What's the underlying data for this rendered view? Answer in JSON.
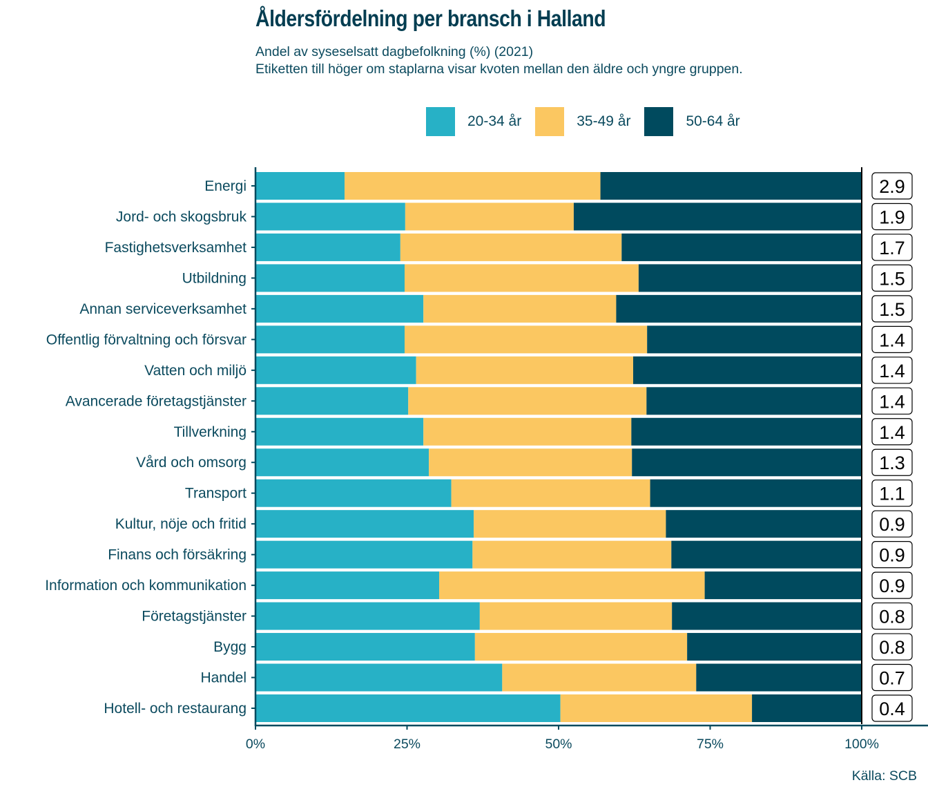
{
  "header": {
    "title": "Åldersfördelning per bransch i Halland",
    "subtitle_line1": "Andel av syseselsatt dagbefolkning (%) (2021)",
    "subtitle_line2": "Etiketten till höger om staplarna visar kvoten mellan den äldre och yngre gruppen."
  },
  "footer": {
    "source": "Källa: SCB"
  },
  "colors": {
    "20-34 år": "#27b1c6",
    "35-49 år": "#fbc761",
    "50-64 år": "#004a5e",
    "text": "#0b4a5e"
  },
  "chart_data": {
    "type": "bar",
    "orientation": "horizontal",
    "stacked": true,
    "title": "Åldersfördelning per bransch i Halland",
    "subtitle": "Andel av syseselsatt dagbefolkning (%) (2021)",
    "xlabel": "",
    "ylabel": "",
    "xlim": [
      0,
      100
    ],
    "x_ticks": [
      "0%",
      "25%",
      "50%",
      "75%",
      "100%"
    ],
    "x_tick_values": [
      0,
      25,
      50,
      75,
      100
    ],
    "legend_position": "top",
    "grid": false,
    "categories": [
      "Energi",
      "Jord- och skogsbruk",
      "Fastighetsverksamhet",
      "Utbildning",
      "Annan serviceverksamhet",
      "Offentlig förvaltning och försvar",
      "Vatten och miljö",
      "Avancerade företagstjänster",
      "Tillverkning",
      "Vård och omsorg",
      "Transport",
      "Kultur, nöje och fritid",
      "Finans och försäkring",
      "Information och kommunikation",
      "Företagstjänster",
      "Bygg",
      "Handel",
      "Hotell- och restaurang"
    ],
    "series": [
      {
        "name": "20-34 år",
        "color": "#27b1c6",
        "values": [
          14.7,
          24.7,
          23.9,
          24.6,
          27.7,
          24.6,
          26.5,
          25.2,
          27.7,
          28.6,
          32.3,
          36.0,
          35.8,
          30.3,
          37.0,
          36.2,
          40.7,
          50.3
        ]
      },
      {
        "name": "35-49 år",
        "color": "#fbc761",
        "values": [
          42.2,
          27.8,
          36.5,
          38.6,
          31.8,
          40.0,
          35.8,
          39.3,
          34.3,
          33.5,
          32.8,
          31.7,
          32.8,
          43.8,
          31.7,
          35.0,
          32.0,
          31.6
        ]
      },
      {
        "name": "50-64 år",
        "color": "#004a5e",
        "values": [
          43.1,
          47.5,
          39.6,
          36.8,
          40.5,
          35.4,
          37.7,
          35.5,
          38.0,
          37.9,
          34.9,
          32.3,
          31.4,
          25.9,
          31.3,
          28.8,
          27.3,
          18.1
        ]
      }
    ],
    "ratio_labels": [
      "2.9",
      "1.9",
      "1.7",
      "1.5",
      "1.5",
      "1.4",
      "1.4",
      "1.4",
      "1.4",
      "1.3",
      "1.1",
      "0.9",
      "0.9",
      "0.9",
      "0.8",
      "0.8",
      "0.7",
      "0.4"
    ],
    "annotation": "Etiketten till höger om staplarna visar kvoten mellan den äldre och yngre gruppen."
  }
}
